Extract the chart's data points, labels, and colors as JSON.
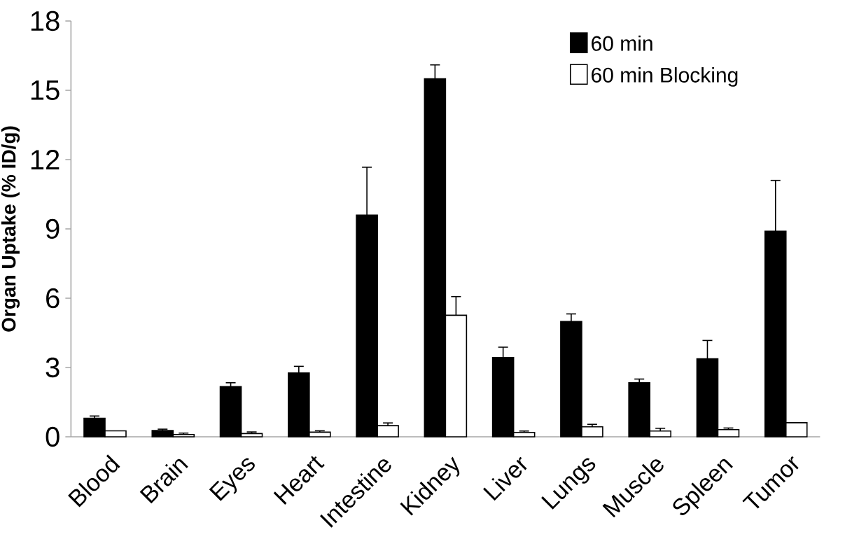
{
  "chart_data": {
    "type": "bar",
    "ylabel": "Organ Uptake (% ID/g)",
    "categories": [
      "Blood",
      "Brain",
      "Eyes",
      "Heart",
      "Intestine",
      "Kidney",
      "Liver",
      "Lungs",
      "Muscle",
      "Spleen",
      "Tumor"
    ],
    "series": [
      {
        "name": "60 min",
        "color": "#000000",
        "values": [
          0.8,
          0.27,
          2.17,
          2.76,
          9.6,
          15.5,
          3.43,
          4.99,
          2.34,
          3.38,
          8.9
        ],
        "errors": [
          [
            0.8,
            0.9
          ],
          [
            0.27,
            0.33
          ],
          [
            2.17,
            2.34
          ],
          [
            2.76,
            3.05
          ],
          [
            9.6,
            11.67
          ],
          [
            15.5,
            16.1
          ],
          [
            3.43,
            3.88
          ],
          [
            4.99,
            5.32
          ],
          [
            2.34,
            2.5
          ],
          [
            3.38,
            4.17
          ],
          [
            8.9,
            11.1
          ]
        ]
      },
      {
        "name": "60 min Blocking",
        "color": "#ffffff",
        "values": [
          0.26,
          0.1,
          0.14,
          0.2,
          0.48,
          5.26,
          0.19,
          0.43,
          0.25,
          0.31,
          0.61
        ],
        "errors": [
          null,
          [
            0.1,
            0.16
          ],
          [
            0.14,
            0.21
          ],
          [
            0.2,
            0.26
          ],
          [
            0.48,
            0.6
          ],
          [
            5.26,
            6.07
          ],
          [
            0.19,
            0.25
          ],
          [
            0.43,
            0.54
          ],
          [
            0.25,
            0.37
          ],
          [
            0.31,
            0.38
          ],
          null
        ]
      }
    ],
    "ylim": [
      0,
      18
    ],
    "yticks": [
      0,
      3,
      6,
      9,
      12,
      15,
      18
    ],
    "grid": false,
    "legend": "top right"
  }
}
